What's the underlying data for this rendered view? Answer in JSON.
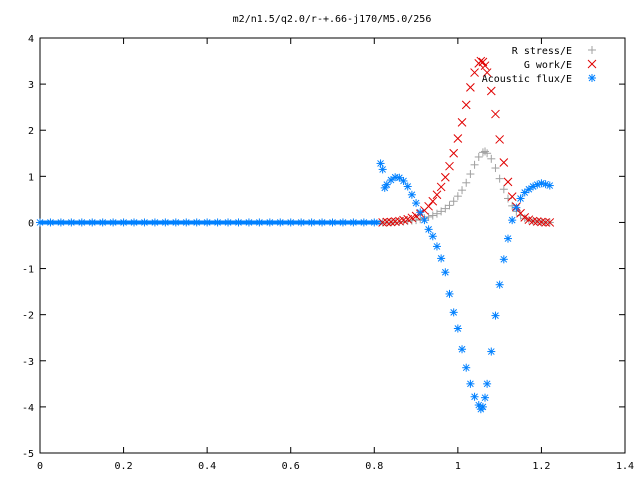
{
  "chart_data": {
    "type": "scatter",
    "title": "m2/n1.5/q2.0/r-+.66-j170/M5.0/256",
    "xlabel": "",
    "ylabel": "",
    "xlim": [
      0,
      1.4
    ],
    "ylim": [
      -5,
      4
    ],
    "xticks": [
      0,
      0.2,
      0.4,
      0.6,
      0.8,
      1,
      1.2,
      1.4
    ],
    "xtick_labels": [
      "0",
      "0.2",
      "0.4",
      "0.6",
      "0.8",
      "1",
      "1.2",
      "1.4"
    ],
    "yticks": [
      -5,
      -4,
      -3,
      -2,
      -1,
      0,
      1,
      2,
      3,
      4
    ],
    "ytick_labels": [
      "-5",
      "-4",
      "-3",
      "-2",
      "-1",
      "0",
      "1",
      "2",
      "3",
      "4"
    ],
    "grid": false,
    "legend_position": "top-right",
    "zero_segment": {
      "x_range": [
        0,
        0.82
      ],
      "y": 0,
      "color": "#0080ff"
    },
    "series": [
      {
        "name": "R stress/E",
        "marker": "plus",
        "color": "#a0a0a0",
        "x": [
          0.82,
          0.83,
          0.84,
          0.85,
          0.86,
          0.87,
          0.88,
          0.89,
          0.9,
          0.91,
          0.92,
          0.93,
          0.94,
          0.95,
          0.96,
          0.97,
          0.98,
          0.99,
          1.0,
          1.01,
          1.02,
          1.03,
          1.04,
          1.05,
          1.06,
          1.065,
          1.07,
          1.08,
          1.09,
          1.1,
          1.11,
          1.12,
          1.13,
          1.14,
          1.15,
          1.16,
          1.17,
          1.18,
          1.19,
          1.2,
          1.21,
          1.22
        ],
        "y": [
          0.0,
          0.0,
          0.0,
          0.01,
          0.01,
          0.02,
          0.03,
          0.04,
          0.05,
          0.07,
          0.09,
          0.12,
          0.15,
          0.19,
          0.24,
          0.3,
          0.37,
          0.46,
          0.57,
          0.7,
          0.86,
          1.05,
          1.25,
          1.42,
          1.52,
          1.54,
          1.5,
          1.38,
          1.18,
          0.95,
          0.72,
          0.52,
          0.36,
          0.24,
          0.15,
          0.09,
          0.05,
          0.03,
          0.02,
          0.01,
          0.0,
          0.0
        ]
      },
      {
        "name": "G work/E",
        "marker": "cross",
        "color": "#e00000",
        "x": [
          0.82,
          0.83,
          0.84,
          0.85,
          0.86,
          0.87,
          0.88,
          0.89,
          0.9,
          0.91,
          0.92,
          0.93,
          0.94,
          0.95,
          0.96,
          0.97,
          0.98,
          0.99,
          1.0,
          1.01,
          1.02,
          1.03,
          1.04,
          1.05,
          1.055,
          1.06,
          1.065,
          1.07,
          1.08,
          1.09,
          1.1,
          1.11,
          1.12,
          1.13,
          1.14,
          1.15,
          1.16,
          1.17,
          1.18,
          1.19,
          1.2,
          1.21,
          1.22
        ],
        "y": [
          0.0,
          0.01,
          0.01,
          0.02,
          0.03,
          0.05,
          0.07,
          0.1,
          0.14,
          0.19,
          0.26,
          0.35,
          0.46,
          0.6,
          0.77,
          0.98,
          1.22,
          1.5,
          1.82,
          2.17,
          2.55,
          2.93,
          3.25,
          3.45,
          3.5,
          3.48,
          3.4,
          3.25,
          2.85,
          2.35,
          1.8,
          1.3,
          0.88,
          0.56,
          0.34,
          0.2,
          0.11,
          0.06,
          0.03,
          0.02,
          0.01,
          0.0,
          0.0
        ]
      },
      {
        "name": "Acoustic flux/E",
        "marker": "star",
        "color": "#0080ff",
        "x": [
          0.0,
          0.025,
          0.05,
          0.075,
          0.1,
          0.125,
          0.15,
          0.175,
          0.2,
          0.225,
          0.25,
          0.275,
          0.3,
          0.325,
          0.35,
          0.375,
          0.4,
          0.425,
          0.45,
          0.475,
          0.5,
          0.525,
          0.55,
          0.575,
          0.6,
          0.625,
          0.65,
          0.675,
          0.7,
          0.725,
          0.75,
          0.775,
          0.8,
          0.815,
          0.82,
          0.825,
          0.83,
          0.84,
          0.85,
          0.86,
          0.87,
          0.88,
          0.89,
          0.9,
          0.91,
          0.92,
          0.93,
          0.94,
          0.95,
          0.96,
          0.97,
          0.98,
          0.99,
          1.0,
          1.01,
          1.02,
          1.03,
          1.04,
          1.05,
          1.055,
          1.06,
          1.065,
          1.07,
          1.08,
          1.09,
          1.1,
          1.11,
          1.12,
          1.13,
          1.14,
          1.15,
          1.16,
          1.17,
          1.18,
          1.19,
          1.2,
          1.21,
          1.22
        ],
        "y": [
          0,
          0,
          0,
          0,
          0,
          0,
          0,
          0,
          0,
          0,
          0,
          0,
          0,
          0,
          0,
          0,
          0,
          0,
          0,
          0,
          0,
          0,
          0,
          0,
          0,
          0,
          0,
          0,
          0,
          0,
          0,
          0,
          0,
          1.28,
          1.15,
          0.75,
          0.82,
          0.92,
          0.98,
          0.97,
          0.9,
          0.78,
          0.6,
          0.42,
          0.22,
          0.05,
          -0.15,
          -0.3,
          -0.52,
          -0.78,
          -1.08,
          -1.55,
          -1.95,
          -2.3,
          -2.75,
          -3.15,
          -3.5,
          -3.78,
          -3.96,
          -4.05,
          -4.0,
          -3.8,
          -3.5,
          -2.8,
          -2.02,
          -1.35,
          -0.8,
          -0.35,
          0.05,
          0.32,
          0.52,
          0.65,
          0.72,
          0.78,
          0.82,
          0.85,
          0.83,
          0.8
        ]
      }
    ]
  }
}
